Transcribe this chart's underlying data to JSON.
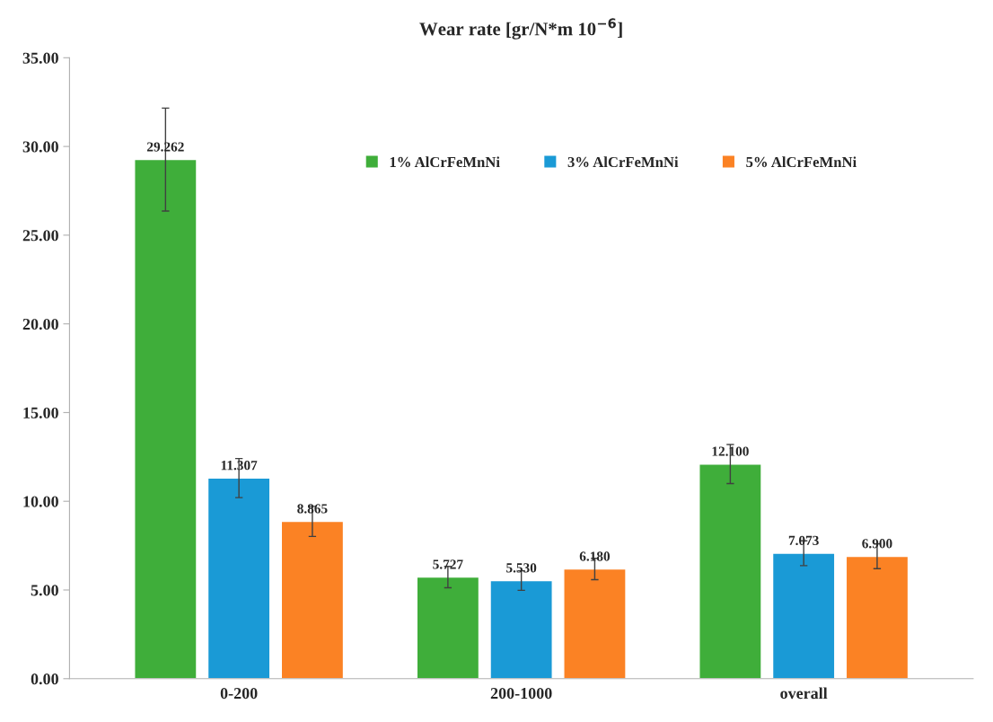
{
  "chart_data": {
    "type": "bar",
    "title": "Wear rate [gr/N*m 10$^{−6}$]",
    "categories": [
      "0-200",
      "200-1000",
      "overall"
    ],
    "series": [
      {
        "name": "1% AlCrFeMnNi",
        "color": "#3fae3a",
        "values": [
          29.262,
          5.727,
          12.1
        ],
        "errors": [
          2.9,
          0.6,
          1.1
        ],
        "value_labels": [
          "29.262",
          "5.727",
          "12.100"
        ]
      },
      {
        "name": "3% AlCrFeMnNi",
        "color": "#1a9ad6",
        "values": [
          11.307,
          5.53,
          7.073
        ],
        "errors": [
          1.1,
          0.55,
          0.7
        ],
        "value_labels": [
          "11.307",
          "5.530",
          "7.073"
        ]
      },
      {
        "name": "5% AlCrFeMnNi",
        "color": "#fb8224",
        "values": [
          8.865,
          6.18,
          6.9
        ],
        "errors": [
          0.85,
          0.6,
          0.7
        ],
        "value_labels": [
          "8.865",
          "6.180",
          "6.900"
        ]
      }
    ],
    "ylim": [
      0,
      35
    ],
    "yticks": [
      {
        "value": 0,
        "label": "0.00"
      },
      {
        "value": 5,
        "label": "5.00"
      },
      {
        "value": 10,
        "label": "10.00"
      },
      {
        "value": 15,
        "label": "15.00"
      },
      {
        "value": 20,
        "label": "20.00"
      },
      {
        "value": 25,
        "label": "25.00"
      },
      {
        "value": 30,
        "label": "30.00"
      },
      {
        "value": 35,
        "label": "35.00"
      }
    ],
    "grid": false,
    "legend": "top"
  }
}
